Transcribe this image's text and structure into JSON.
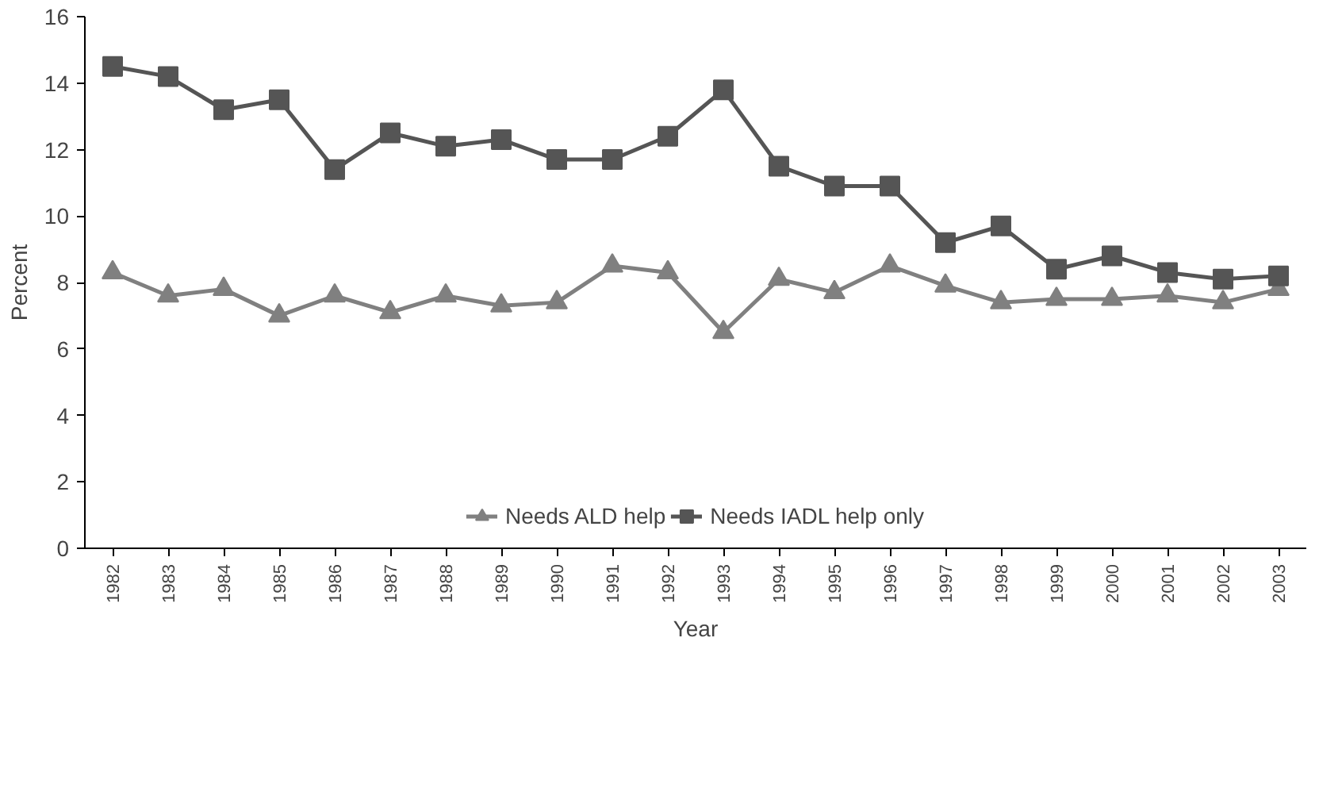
{
  "chart_data": {
    "type": "line",
    "xlabel": "Year",
    "ylabel": "Percent",
    "categories": [
      "1982",
      "1983",
      "1984",
      "1985",
      "1986",
      "1987",
      "1988",
      "1989",
      "1990",
      "1991",
      "1992",
      "1993",
      "1994",
      "1995",
      "1996",
      "1997",
      "1998",
      "1999",
      "2000",
      "2001",
      "2002",
      "2003"
    ],
    "series": [
      {
        "name": "Needs ALD help",
        "color": "#808080",
        "marker": "triangle",
        "values": [
          8.3,
          7.6,
          7.8,
          7.0,
          7.6,
          7.1,
          7.6,
          7.3,
          7.4,
          8.5,
          8.3,
          6.5,
          8.1,
          7.7,
          8.5,
          7.9,
          7.4,
          7.5,
          7.5,
          7.6,
          7.4,
          7.8
        ]
      },
      {
        "name": "Needs IADL help only",
        "color": "#555555",
        "marker": "square",
        "values": [
          14.5,
          14.2,
          13.2,
          13.5,
          11.4,
          12.5,
          12.1,
          12.3,
          11.7,
          11.7,
          12.4,
          13.8,
          11.5,
          10.9,
          10.9,
          9.2,
          9.7,
          8.4,
          8.8,
          8.3,
          8.1,
          8.2
        ]
      }
    ],
    "ylim": [
      0,
      16
    ],
    "yticks": [
      0,
      2,
      4,
      6,
      8,
      10,
      12,
      14,
      16
    ],
    "grid": false,
    "legend": "bottom",
    "line_style": "solid"
  }
}
